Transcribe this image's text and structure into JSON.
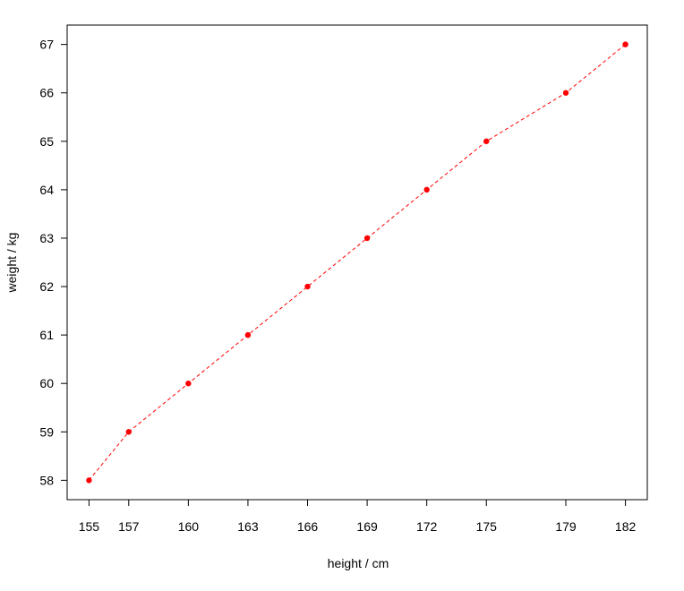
{
  "chart_data": {
    "type": "line",
    "title": "",
    "xlabel": "height / cm",
    "ylabel": "weight / kg",
    "x": [
      155,
      157,
      160,
      163,
      166,
      169,
      172,
      175,
      179,
      182
    ],
    "y": [
      58,
      59,
      60,
      61,
      62,
      63,
      64,
      65,
      66,
      67
    ],
    "xticks": [
      155,
      157,
      160,
      163,
      166,
      169,
      172,
      175,
      179,
      182
    ],
    "yticks": [
      58,
      59,
      60,
      61,
      62,
      63,
      64,
      65,
      66,
      67
    ],
    "xlim": [
      153.9,
      183.1
    ],
    "ylim": [
      57.6,
      67.4
    ],
    "line_style": "dashed",
    "marker": "filled-circle",
    "grid": false,
    "series_color": "#ff0000",
    "axis_color": "#000000"
  }
}
